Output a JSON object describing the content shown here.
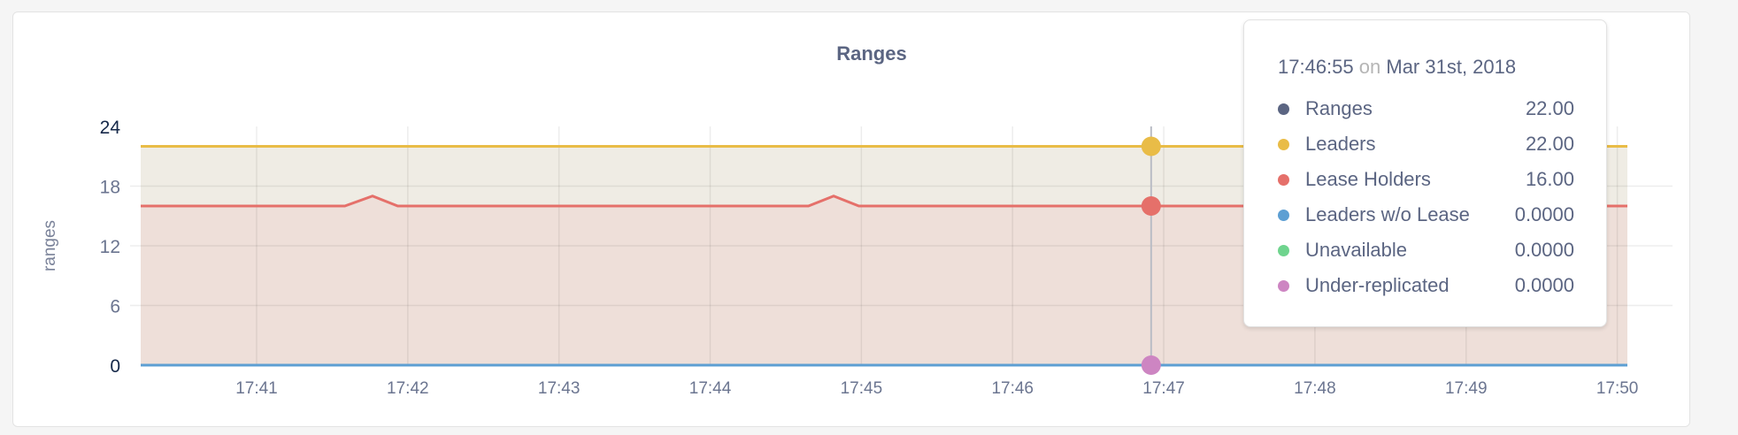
{
  "chart_data": {
    "type": "area",
    "title": "Ranges",
    "ylabel": "ranges",
    "xlabel": "",
    "ylim": [
      0,
      24
    ],
    "yticks": [
      "0",
      "6",
      "12",
      "18",
      "24"
    ],
    "xlim": [
      "17:40:14",
      "17:50:04"
    ],
    "xticks": [
      "17:41",
      "17:42",
      "17:43",
      "17:44",
      "17:45",
      "17:46",
      "17:47",
      "17:48",
      "17:49",
      "17:50"
    ],
    "grid": true,
    "series": [
      {
        "name": "Ranges",
        "color": "#5b6582",
        "points": [
          [
            "17:40:14",
            22
          ],
          [
            "17:50:04",
            22
          ]
        ]
      },
      {
        "name": "Leaders",
        "color": "#e9bc47",
        "points": [
          [
            "17:40:14",
            22
          ],
          [
            "17:50:04",
            22
          ]
        ]
      },
      {
        "name": "Lease Holders",
        "color": "#e5706a",
        "points": [
          [
            "17:40:14",
            16
          ],
          [
            "17:41:35",
            16
          ],
          [
            "17:41:46",
            17
          ],
          [
            "17:41:56",
            16
          ],
          [
            "17:44:39",
            16
          ],
          [
            "17:44:49",
            17
          ],
          [
            "17:44:59",
            16
          ],
          [
            "17:50:04",
            16
          ]
        ]
      },
      {
        "name": "Leaders w/o Lease",
        "color": "#5d9fd3",
        "points": [
          [
            "17:40:14",
            0
          ],
          [
            "17:50:04",
            0
          ]
        ]
      },
      {
        "name": "Unavailable",
        "color": "#6fd48e",
        "points": [
          [
            "17:40:14",
            0
          ],
          [
            "17:50:04",
            0
          ]
        ]
      },
      {
        "name": "Under-replicated",
        "color": "#cd85c2",
        "points": [
          [
            "17:40:14",
            0
          ],
          [
            "17:50:04",
            0
          ]
        ]
      }
    ],
    "hover_time": "17:46:55"
  },
  "tooltip": {
    "time": "17:46:55",
    "on": "on",
    "date": "Mar 31st, 2018",
    "rows": [
      {
        "name": "Ranges",
        "value": "22.00",
        "color": "#5b6582"
      },
      {
        "name": "Leaders",
        "value": "22.00",
        "color": "#e9bc47"
      },
      {
        "name": "Lease Holders",
        "value": "16.00",
        "color": "#e5706a"
      },
      {
        "name": "Leaders w/o Lease",
        "value": "0.0000",
        "color": "#5d9fd3"
      },
      {
        "name": "Unavailable",
        "value": "0.0000",
        "color": "#6fd48e"
      },
      {
        "name": "Under-replicated",
        "value": "0.0000",
        "color": "#cd85c2"
      }
    ]
  }
}
